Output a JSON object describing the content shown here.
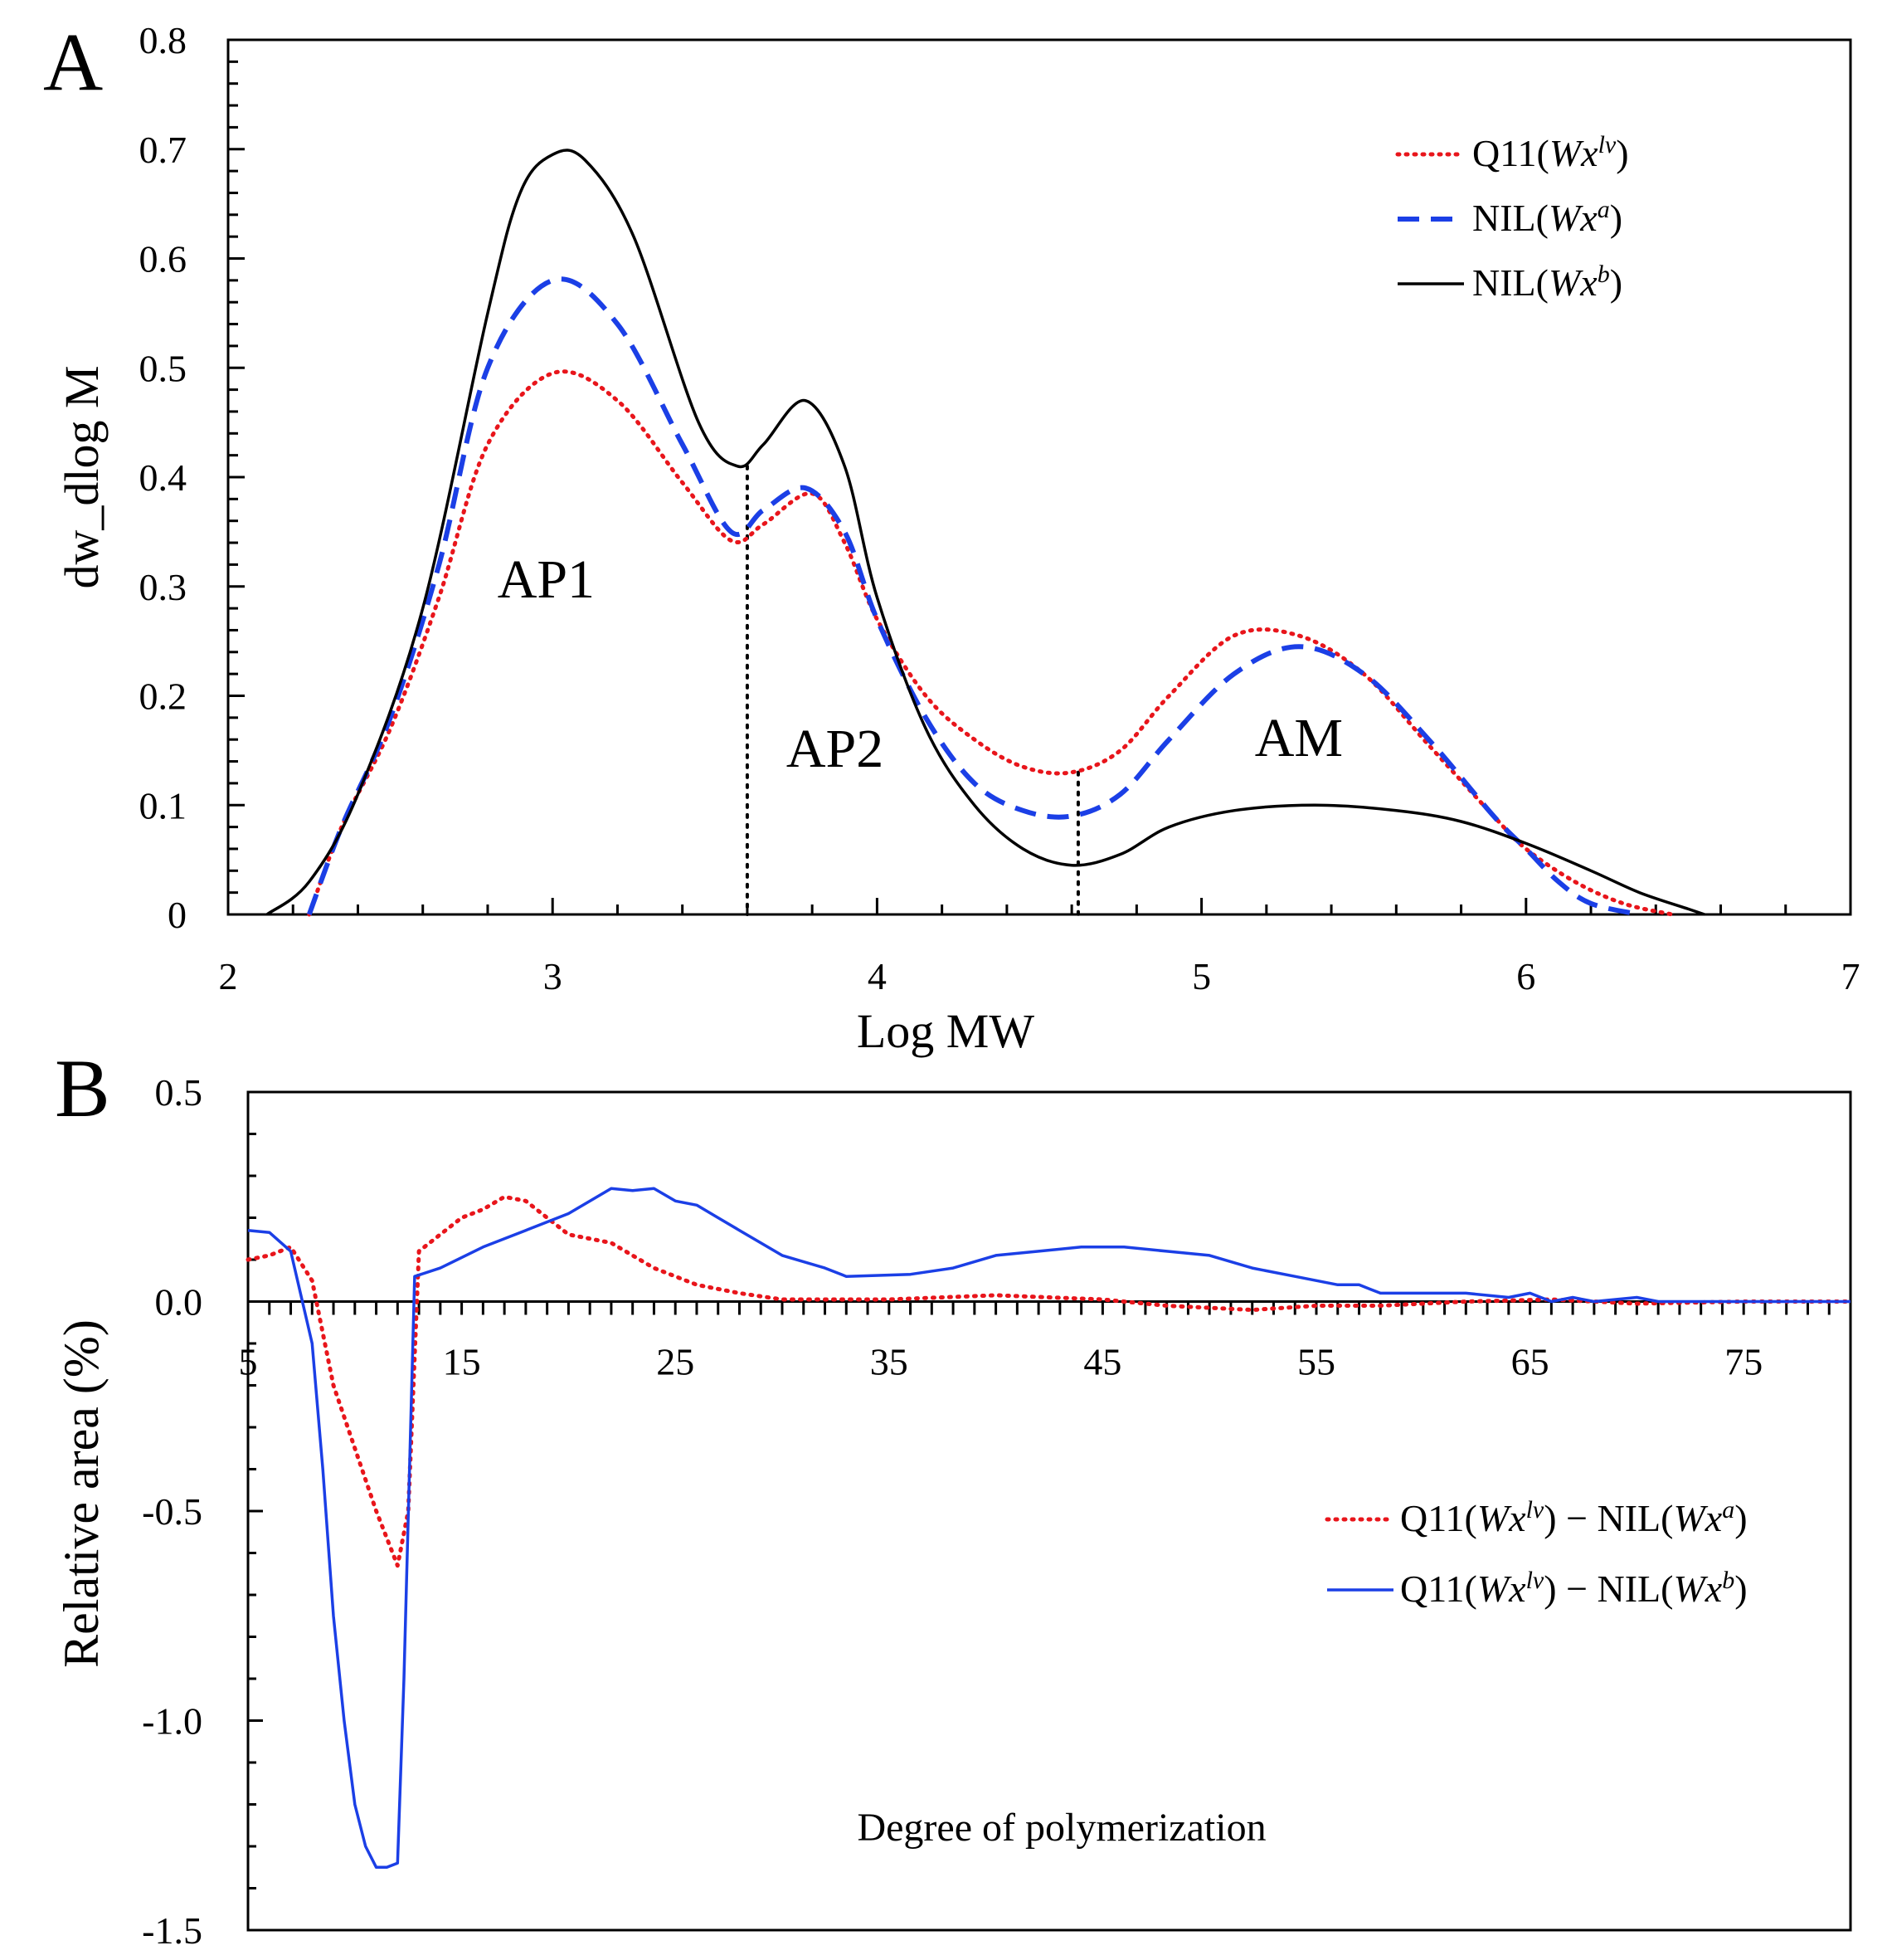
{
  "panels": {
    "A": {
      "letter": "A"
    },
    "B": {
      "letter": "B"
    }
  },
  "chart_data": [
    {
      "panel": "A",
      "type": "line",
      "xlabel": "Log MW",
      "ylabel": "dw_dlog M",
      "xlim": [
        2,
        7
      ],
      "ylim": [
        0,
        0.8
      ],
      "xticks": [
        "2",
        "3",
        "4",
        "5",
        "6",
        "7"
      ],
      "yticks": [
        "0",
        "0.1",
        "0.2",
        "0.3",
        "0.4",
        "0.5",
        "0.6",
        "0.7",
        "0.8"
      ],
      "legend_position": "top-right",
      "series": [
        {
          "name": "Q11(Wx^lv)",
          "legend_parts": [
            "Q11(",
            "Wx",
            "lv",
            ")"
          ],
          "color": "#e8151b",
          "dash": "dotted",
          "points": [
            [
              2.25,
              0
            ],
            [
              2.35,
              0.08
            ],
            [
              2.5,
              0.17
            ],
            [
              2.65,
              0.29
            ],
            [
              2.8,
              0.43
            ],
            [
              3.0,
              0.495
            ],
            [
              3.2,
              0.47
            ],
            [
              3.4,
              0.395
            ],
            [
              3.55,
              0.342
            ],
            [
              3.65,
              0.357
            ],
            [
              3.8,
              0.385
            ],
            [
              3.9,
              0.34
            ],
            [
              4.0,
              0.27
            ],
            [
              4.15,
              0.2
            ],
            [
              4.3,
              0.16
            ],
            [
              4.45,
              0.135
            ],
            [
              4.6,
              0.13
            ],
            [
              4.75,
              0.15
            ],
            [
              4.9,
              0.2
            ],
            [
              5.1,
              0.255
            ],
            [
              5.3,
              0.255
            ],
            [
              5.5,
              0.22
            ],
            [
              5.7,
              0.155
            ],
            [
              5.9,
              0.09
            ],
            [
              6.0,
              0.06
            ],
            [
              6.15,
              0.03
            ],
            [
              6.3,
              0.01
            ],
            [
              6.45,
              0
            ]
          ]
        },
        {
          "name": "NIL(Wx^a)",
          "legend_parts": [
            "NIL(",
            "Wx",
            "a",
            ")"
          ],
          "color": "#1b3fe6",
          "dash": "dashed",
          "points": [
            [
              2.25,
              0
            ],
            [
              2.35,
              0.08
            ],
            [
              2.5,
              0.18
            ],
            [
              2.65,
              0.32
            ],
            [
              2.8,
              0.5
            ],
            [
              3.0,
              0.58
            ],
            [
              3.2,
              0.54
            ],
            [
              3.4,
              0.43
            ],
            [
              3.55,
              0.35
            ],
            [
              3.65,
              0.37
            ],
            [
              3.78,
              0.39
            ],
            [
              3.9,
              0.35
            ],
            [
              4.0,
              0.27
            ],
            [
              4.15,
              0.18
            ],
            [
              4.3,
              0.12
            ],
            [
              4.45,
              0.095
            ],
            [
              4.6,
              0.09
            ],
            [
              4.75,
              0.11
            ],
            [
              4.9,
              0.16
            ],
            [
              5.1,
              0.22
            ],
            [
              5.3,
              0.245
            ],
            [
              5.5,
              0.22
            ],
            [
              5.7,
              0.16
            ],
            [
              5.9,
              0.09
            ],
            [
              6.0,
              0.06
            ],
            [
              6.1,
              0.03
            ],
            [
              6.2,
              0.01
            ],
            [
              6.35,
              0
            ]
          ]
        },
        {
          "name": "NIL(Wx^b)",
          "legend_parts": [
            "NIL(",
            "Wx",
            "b",
            ")"
          ],
          "color": "#000000",
          "dash": "solid",
          "points": [
            [
              2.12,
              0
            ],
            [
              2.25,
              0.03
            ],
            [
              2.4,
              0.11
            ],
            [
              2.6,
              0.28
            ],
            [
              2.8,
              0.55
            ],
            [
              2.9,
              0.66
            ],
            [
              3.0,
              0.695
            ],
            [
              3.1,
              0.69
            ],
            [
              3.25,
              0.62
            ],
            [
              3.45,
              0.45
            ],
            [
              3.57,
              0.41
            ],
            [
              3.65,
              0.43
            ],
            [
              3.78,
              0.47
            ],
            [
              3.9,
              0.41
            ],
            [
              4.0,
              0.29
            ],
            [
              4.15,
              0.17
            ],
            [
              4.3,
              0.1
            ],
            [
              4.45,
              0.06
            ],
            [
              4.6,
              0.045
            ],
            [
              4.75,
              0.055
            ],
            [
              4.9,
              0.08
            ],
            [
              5.1,
              0.095
            ],
            [
              5.35,
              0.1
            ],
            [
              5.6,
              0.095
            ],
            [
              5.8,
              0.085
            ],
            [
              6.0,
              0.065
            ],
            [
              6.2,
              0.04
            ],
            [
              6.35,
              0.02
            ],
            [
              6.5,
              0.005
            ],
            [
              6.55,
              0
            ]
          ]
        }
      ],
      "vlines": [
        {
          "x": 3.6,
          "y_top": 0.41
        },
        {
          "x": 4.62,
          "y_top": 0.13
        }
      ],
      "annotations": [
        {
          "text": "AP1",
          "x": 2.98,
          "y": 0.29
        },
        {
          "text": "AP2",
          "x": 3.87,
          "y": 0.135
        },
        {
          "text": "AM",
          "x": 5.3,
          "y": 0.145
        }
      ]
    },
    {
      "panel": "B",
      "type": "line",
      "xlabel": "Degree of polymerization",
      "ylabel": "Relative area (%)",
      "xlim": [
        5,
        80
      ],
      "ylim": [
        -1.5,
        0.5
      ],
      "xticks": [
        "5",
        "15",
        "25",
        "35",
        "45",
        "55",
        "65",
        "75"
      ],
      "yticks": [
        "0.5",
        "0.0",
        "-0.5",
        "-1.0",
        "-1.5"
      ],
      "legend_position": "bottom-right",
      "series": [
        {
          "name": "Q11(Wx^lv) − NIL(Wx^a)",
          "legend_parts": [
            "Q11(",
            "Wx",
            "lv",
            ") − NIL(",
            "Wx",
            "a",
            ")"
          ],
          "color": "#e8151b",
          "dash": "dotted",
          "points": [
            [
              5,
              0.1
            ],
            [
              6,
              0.11
            ],
            [
              7,
              0.13
            ],
            [
              8,
              0.05
            ],
            [
              9,
              -0.2
            ],
            [
              10,
              -0.35
            ],
            [
              11,
              -0.5
            ],
            [
              12,
              -0.63
            ],
            [
              12.5,
              -0.5
            ],
            [
              13,
              0.12
            ],
            [
              14,
              0.16
            ],
            [
              15,
              0.2
            ],
            [
              16,
              0.22
            ],
            [
              17,
              0.25
            ],
            [
              18,
              0.24
            ],
            [
              19,
              0.2
            ],
            [
              20,
              0.16
            ],
            [
              22,
              0.14
            ],
            [
              24,
              0.08
            ],
            [
              26,
              0.04
            ],
            [
              28,
              0.02
            ],
            [
              30,
              0.005
            ],
            [
              35,
              0.005
            ],
            [
              40,
              0.015
            ],
            [
              45,
              0.005
            ],
            [
              48,
              -0.01
            ],
            [
              52,
              -0.02
            ],
            [
              55,
              -0.01
            ],
            [
              58,
              -0.01
            ],
            [
              62,
              0
            ],
            [
              66,
              0.005
            ],
            [
              70,
              -0.005
            ],
            [
              75,
              0
            ],
            [
              80,
              0
            ]
          ]
        },
        {
          "name": "Q11(Wx^lv) − NIL(Wx^b)",
          "legend_parts": [
            "Q11(",
            "Wx",
            "lv",
            ") − NIL(",
            "Wx",
            "b",
            ")"
          ],
          "color": "#1b3fe6",
          "dash": "solid",
          "points": [
            [
              5,
              0.17
            ],
            [
              6,
              0.165
            ],
            [
              7,
              0.12
            ],
            [
              8,
              -0.1
            ],
            [
              8.5,
              -0.4
            ],
            [
              9,
              -0.75
            ],
            [
              9.5,
              -1.0
            ],
            [
              10,
              -1.2
            ],
            [
              10.5,
              -1.3
            ],
            [
              11,
              -1.35
            ],
            [
              11.5,
              -1.35
            ],
            [
              12,
              -1.34
            ],
            [
              12.3,
              -0.9
            ],
            [
              12.8,
              0.06
            ],
            [
              14,
              0.08
            ],
            [
              16,
              0.13
            ],
            [
              18,
              0.17
            ],
            [
              20,
              0.21
            ],
            [
              22,
              0.27
            ],
            [
              23,
              0.265
            ],
            [
              24,
              0.27
            ],
            [
              25,
              0.24
            ],
            [
              26,
              0.23
            ],
            [
              27,
              0.2
            ],
            [
              28,
              0.17
            ],
            [
              30,
              0.11
            ],
            [
              32,
              0.08
            ],
            [
              33,
              0.06
            ],
            [
              36,
              0.065
            ],
            [
              38,
              0.08
            ],
            [
              40,
              0.11
            ],
            [
              42,
              0.12
            ],
            [
              44,
              0.13
            ],
            [
              46,
              0.13
            ],
            [
              48,
              0.12
            ],
            [
              50,
              0.11
            ],
            [
              52,
              0.08
            ],
            [
              54,
              0.06
            ],
            [
              56,
              0.04
            ],
            [
              57,
              0.04
            ],
            [
              58,
              0.02
            ],
            [
              62,
              0.02
            ],
            [
              64,
              0.01
            ],
            [
              65,
              0.02
            ],
            [
              66,
              0
            ],
            [
              67,
              0.01
            ],
            [
              68,
              0
            ],
            [
              70,
              0.01
            ],
            [
              71,
              0
            ],
            [
              75,
              0
            ],
            [
              80,
              0
            ]
          ]
        }
      ]
    }
  ]
}
